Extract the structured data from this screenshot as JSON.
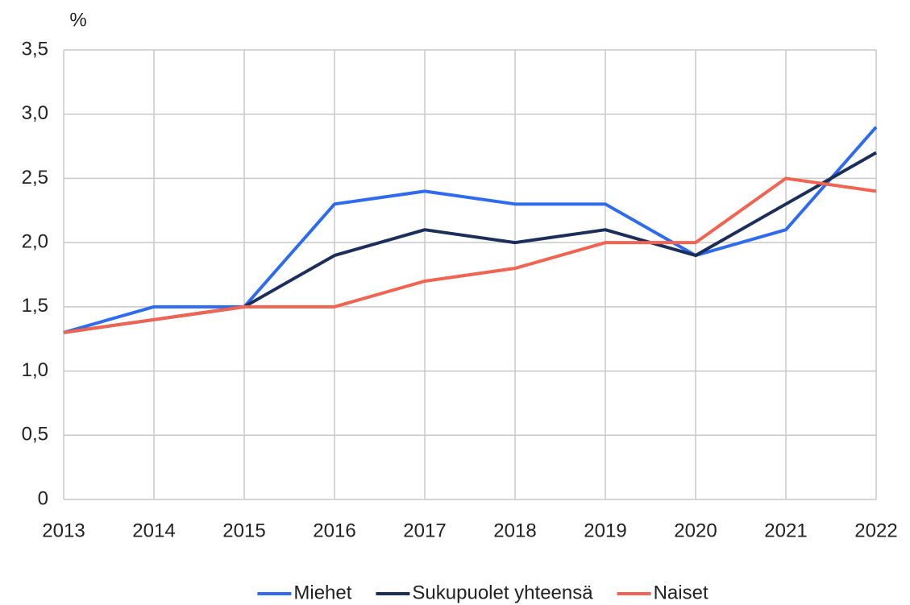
{
  "chart_data": {
    "type": "line",
    "y_label": "%",
    "x": [
      2013,
      2014,
      2015,
      2016,
      2017,
      2018,
      2019,
      2020,
      2021,
      2022
    ],
    "xlim": [
      2013,
      2022
    ],
    "xticks": [
      2013,
      2014,
      2015,
      2016,
      2017,
      2018,
      2019,
      2020,
      2021,
      2022
    ],
    "ylim": [
      0,
      3.5
    ],
    "yticks": [
      0,
      {
        "value": 0.5,
        "label": "0,5"
      },
      {
        "value": 1,
        "label": "1,0"
      },
      {
        "value": 1.5,
        "label": "1,5"
      },
      {
        "value": 2,
        "label": "2,0"
      },
      {
        "value": 2.5,
        "label": "2,5"
      },
      {
        "value": 3,
        "label": "3,0"
      },
      {
        "value": 3.5,
        "label": "3,5"
      }
    ],
    "grid": true,
    "legend": "bottom",
    "series": [
      {
        "name": "Miehet",
        "color": "#2f6bef",
        "values": [
          1.3,
          1.5,
          1.5,
          2.3,
          2.4,
          2.3,
          2.3,
          1.9,
          2.1,
          2.9
        ]
      },
      {
        "name": "Sukupuolet yhteensä",
        "color": "#1c2e5a",
        "values": [
          1.3,
          1.4,
          1.5,
          1.9,
          2.1,
          2.0,
          2.1,
          1.9,
          2.3,
          2.7
        ]
      },
      {
        "name": "Naiset",
        "color": "#f06451",
        "values": [
          1.3,
          1.4,
          1.5,
          1.5,
          1.7,
          1.8,
          2.0,
          2.0,
          2.5,
          2.4
        ]
      }
    ]
  }
}
